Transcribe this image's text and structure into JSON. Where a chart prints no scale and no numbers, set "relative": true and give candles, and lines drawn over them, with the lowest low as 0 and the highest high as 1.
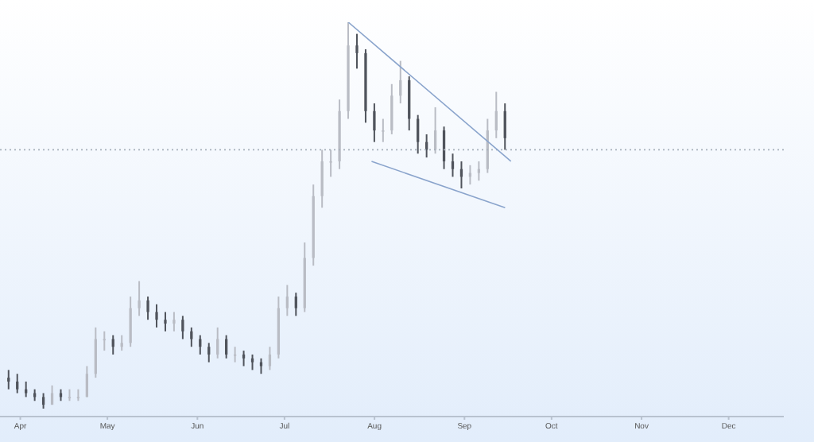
{
  "chart_data": {
    "type": "candlestick",
    "relative": true,
    "x": [
      "--03-28",
      "--03-31",
      "--04-03",
      "--04-06",
      "--04-09",
      "--04-12",
      "--04-15",
      "--04-18",
      "--04-21",
      "--04-24",
      "--04-27",
      "--04-30",
      "--05-03",
      "--05-06",
      "--05-09",
      "--05-12",
      "--05-15",
      "--05-18",
      "--05-21",
      "--05-24",
      "--05-27",
      "--05-30",
      "--06-02",
      "--06-05",
      "--06-08",
      "--06-11",
      "--06-14",
      "--06-17",
      "--06-20",
      "--06-23",
      "--06-26",
      "--06-29",
      "--07-02",
      "--07-05",
      "--07-08",
      "--07-11",
      "--07-14",
      "--07-17",
      "--07-20",
      "--07-23",
      "--07-26",
      "--07-29",
      "--08-01",
      "--08-04",
      "--08-07",
      "--08-10",
      "--08-13",
      "--08-16",
      "--08-19",
      "--08-22",
      "--08-25",
      "--08-28",
      "--08-31",
      "--09-03",
      "--09-06",
      "--09-09",
      "--09-12",
      "--09-15"
    ],
    "ohlc": [
      [
        0.08,
        0.1,
        0.05,
        0.07
      ],
      [
        0.07,
        0.09,
        0.04,
        0.05
      ],
      [
        0.05,
        0.07,
        0.03,
        0.04
      ],
      [
        0.04,
        0.05,
        0.02,
        0.03
      ],
      [
        0.03,
        0.04,
        0,
        0.01
      ],
      [
        0.01,
        0.06,
        0.01,
        0.04
      ],
      [
        0.04,
        0.05,
        0.02,
        0.03
      ],
      [
        0.03,
        0.05,
        0.02,
        0.03
      ],
      [
        0.03,
        0.05,
        0.02,
        0.03
      ],
      [
        0.03,
        0.11,
        0.03,
        0.09
      ],
      [
        0.09,
        0.21,
        0.08,
        0.18
      ],
      [
        0.18,
        0.2,
        0.15,
        0.18
      ],
      [
        0.18,
        0.19,
        0.14,
        0.16
      ],
      [
        0.16,
        0.19,
        0.15,
        0.17
      ],
      [
        0.17,
        0.29,
        0.16,
        0.26
      ],
      [
        0.26,
        0.33,
        0.24,
        0.28
      ],
      [
        0.28,
        0.29,
        0.23,
        0.25
      ],
      [
        0.25,
        0.27,
        0.21,
        0.23
      ],
      [
        0.23,
        0.25,
        0.2,
        0.22
      ],
      [
        0.22,
        0.25,
        0.2,
        0.23
      ],
      [
        0.23,
        0.24,
        0.18,
        0.2
      ],
      [
        0.2,
        0.21,
        0.16,
        0.18
      ],
      [
        0.18,
        0.19,
        0.14,
        0.16
      ],
      [
        0.16,
        0.17,
        0.12,
        0.14
      ],
      [
        0.14,
        0.21,
        0.13,
        0.18
      ],
      [
        0.18,
        0.19,
        0.13,
        0.14
      ],
      [
        0.14,
        0.16,
        0.12,
        0.14
      ],
      [
        0.14,
        0.15,
        0.11,
        0.13
      ],
      [
        0.13,
        0.14,
        0.1,
        0.12
      ],
      [
        0.12,
        0.13,
        0.09,
        0.11
      ],
      [
        0.11,
        0.16,
        0.1,
        0.14
      ],
      [
        0.14,
        0.29,
        0.13,
        0.26
      ],
      [
        0.26,
        0.32,
        0.24,
        0.29
      ],
      [
        0.29,
        0.3,
        0.24,
        0.26
      ],
      [
        0.26,
        0.43,
        0.25,
        0.39
      ],
      [
        0.39,
        0.58,
        0.37,
        0.55
      ],
      [
        0.55,
        0.67,
        0.52,
        0.64
      ],
      [
        0.64,
        0.67,
        0.6,
        0.64
      ],
      [
        0.64,
        0.8,
        0.62,
        0.77
      ],
      [
        0.77,
        1,
        0.75,
        0.94
      ],
      [
        0.94,
        0.97,
        0.88,
        0.92
      ],
      [
        0.92,
        0.93,
        0.74,
        0.77
      ],
      [
        0.77,
        0.79,
        0.69,
        0.72
      ],
      [
        0.72,
        0.75,
        0.69,
        0.72
      ],
      [
        0.72,
        0.84,
        0.71,
        0.81
      ],
      [
        0.81,
        0.9,
        0.79,
        0.85
      ],
      [
        0.85,
        0.86,
        0.72,
        0.75
      ],
      [
        0.75,
        0.76,
        0.66,
        0.69
      ],
      [
        0.69,
        0.71,
        0.65,
        0.67
      ],
      [
        0.67,
        0.78,
        0.66,
        0.72
      ],
      [
        0.72,
        0.73,
        0.62,
        0.64
      ],
      [
        0.64,
        0.66,
        0.6,
        0.62
      ],
      [
        0.62,
        0.64,
        0.57,
        0.6
      ],
      [
        0.6,
        0.63,
        0.58,
        0.61
      ],
      [
        0.61,
        0.64,
        0.59,
        0.62
      ],
      [
        0.62,
        0.75,
        0.61,
        0.72
      ],
      [
        0.72,
        0.82,
        0.7,
        0.77
      ],
      [
        0.77,
        0.79,
        0.67,
        0.7
      ]
    ],
    "colors": [
      "#50545c",
      "#50545c",
      "#50545c",
      "#50545c",
      "#50545c",
      "#b9bcc4",
      "#50545c",
      "#b9bcc4",
      "#b9bcc4",
      "#b9bcc4",
      "#b9bcc4",
      "#b9bcc4",
      "#50545c",
      "#b9bcc4",
      "#b9bcc4",
      "#b9bcc4",
      "#50545c",
      "#50545c",
      "#50545c",
      "#b9bcc4",
      "#50545c",
      "#50545c",
      "#50545c",
      "#50545c",
      "#b9bcc4",
      "#50545c",
      "#b9bcc4",
      "#50545c",
      "#50545c",
      "#50545c",
      "#b9bcc4",
      "#b9bcc4",
      "#b9bcc4",
      "#50545c",
      "#b9bcc4",
      "#b9bcc4",
      "#b9bcc4",
      "#b9bcc4",
      "#b9bcc4",
      "#b9bcc4",
      "#50545c",
      "#50545c",
      "#50545c",
      "#b9bcc4",
      "#b9bcc4",
      "#b9bcc4",
      "#50545c",
      "#50545c",
      "#50545c",
      "#b9bcc4",
      "#50545c",
      "#50545c",
      "#50545c",
      "#b9bcc4",
      "#b9bcc4",
      "#b9bcc4",
      "#b9bcc4",
      "#50545c"
    ],
    "series": [
      {
        "type": "line",
        "color": "#8aa4cc",
        "x": [
          "--07-23",
          "--09-17"
        ],
        "values": [
          1,
          0.64
        ]
      },
      {
        "type": "line",
        "color": "#8aa4cc",
        "x": [
          "--07-31",
          "--09-15"
        ],
        "values": [
          0.64,
          0.52
        ]
      }
    ],
    "ref_lines": [
      {
        "axis": "y",
        "value": 0.67,
        "color": "#a7b0bb",
        "line_style": "dotted"
      }
    ],
    "xlim": [
      "--03-25",
      "--12-20"
    ],
    "xticks": [
      {
        "value": "--04-01",
        "label": "Apr"
      },
      {
        "value": "--05-01",
        "label": "May"
      },
      {
        "value": "--06-01",
        "label": "Jun"
      },
      {
        "value": "--07-01",
        "label": "Jul"
      },
      {
        "value": "--08-01",
        "label": "Aug"
      },
      {
        "value": "--09-01",
        "label": "Sep"
      },
      {
        "value": "--10-01",
        "label": "Oct"
      },
      {
        "value": "--11-01",
        "label": "Nov"
      },
      {
        "value": "--12-01",
        "label": "Dec"
      }
    ],
    "marker": "none"
  }
}
